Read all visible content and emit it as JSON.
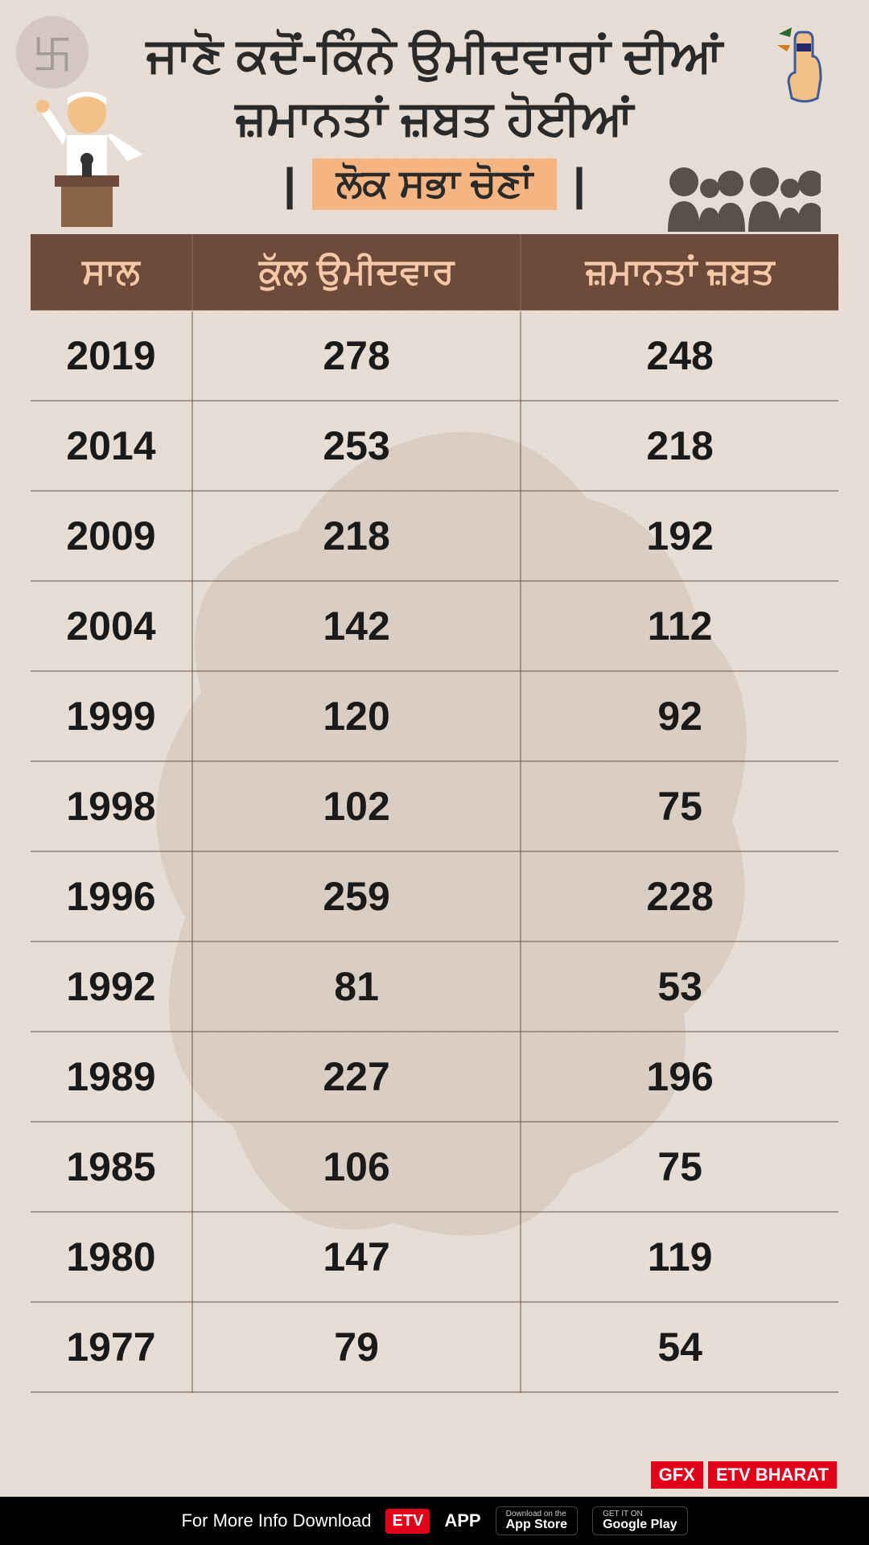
{
  "header": {
    "title_line1": "ਜਾਣੋ ਕਦੋਂ-ਕਿੰਨੇ ਉਮੀਦਵਾਰਾਂ ਦੀਆਂ",
    "title_line2": "ਜ਼ਮਾਨਤਾਂ ਜ਼ਬਤ ਹੋਈਆਂ",
    "subtitle": "ਲੋਕ ਸਭਾ ਚੋਣਾਂ"
  },
  "table": {
    "type": "table",
    "header_bg": "#6e4a3a",
    "header_fg": "#f5c9a8",
    "cell_fg": "#1a1a1a",
    "border_color": "rgba(90,70,60,0.45)",
    "header_fontsize": 44,
    "cell_fontsize": 50,
    "columns": [
      "ਸਾਲ",
      "ਕੁੱਲ ਉਮੀਦਵਾਰ",
      "ਜ਼ਮਾਨਤਾਂ ਜ਼ਬਤ"
    ],
    "rows": [
      [
        "2019",
        "278",
        "248"
      ],
      [
        "2014",
        "253",
        "218"
      ],
      [
        "2009",
        "218",
        "192"
      ],
      [
        "2004",
        "142",
        "112"
      ],
      [
        "1999",
        "120",
        "92"
      ],
      [
        "1998",
        "102",
        "75"
      ],
      [
        "1996",
        "259",
        "228"
      ],
      [
        "1992",
        "81",
        "53"
      ],
      [
        "1989",
        "227",
        "196"
      ],
      [
        "1985",
        "106",
        "75"
      ],
      [
        "1980",
        "147",
        "119"
      ],
      [
        "1977",
        "79",
        "54"
      ]
    ]
  },
  "footer": {
    "gfx": "GFX",
    "brand": "ETV BHARAT",
    "text": "For More Info Download",
    "app": "APP",
    "appstore_small": "Download on the",
    "appstore": "App Store",
    "play_small": "GET IT ON",
    "play": "Google Play"
  },
  "colors": {
    "background": "#e8ddd4",
    "subtitle_bg": "#f5b583",
    "brand_red": "#e2001a"
  }
}
